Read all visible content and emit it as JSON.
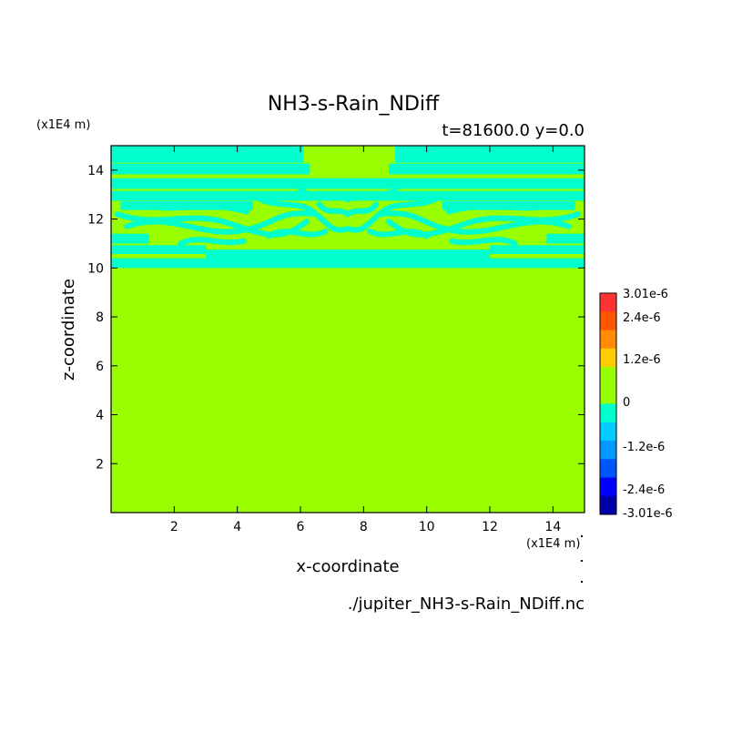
{
  "chart_data": {
    "type": "heatmap",
    "title": "NH3-s-Rain_NDiff",
    "subtitle": "t=81600.0 y=0.0",
    "xlabel": "x-coordinate",
    "ylabel": "z-coordinate",
    "x_unit": "(x1E4 m)",
    "y_unit": "(x1E4 m)",
    "xlim": [
      0,
      15
    ],
    "ylim": [
      0,
      15
    ],
    "x_ticks": [
      2,
      4,
      6,
      8,
      10,
      12,
      14
    ],
    "y_ticks": [
      2,
      4,
      6,
      8,
      10,
      12,
      14
    ],
    "grid": false,
    "background_value": 0,
    "background_color": "#99ff00",
    "pattern_color": "#00ffcc",
    "pattern_value": "-1.2e-6 to 0",
    "pattern_z_range": [
      10,
      15
    ],
    "colorbar": {
      "levels": [
        "3.01e-6",
        "2.4e-6",
        "1.2e-6",
        "0",
        "-1.2e-6",
        "-2.4e-6",
        "-3.01e-6"
      ],
      "colors": [
        "#ff3333",
        "#ff5500",
        "#ff8c00",
        "#ffcc00",
        "#99ff00",
        "#99ff00",
        "#00ffcc",
        "#00ccff",
        "#0099ff",
        "#0055ff",
        "#0000ff",
        "#0000aa"
      ]
    },
    "source": "./jupiter_NH3-s-Rain_NDiff.nc"
  }
}
